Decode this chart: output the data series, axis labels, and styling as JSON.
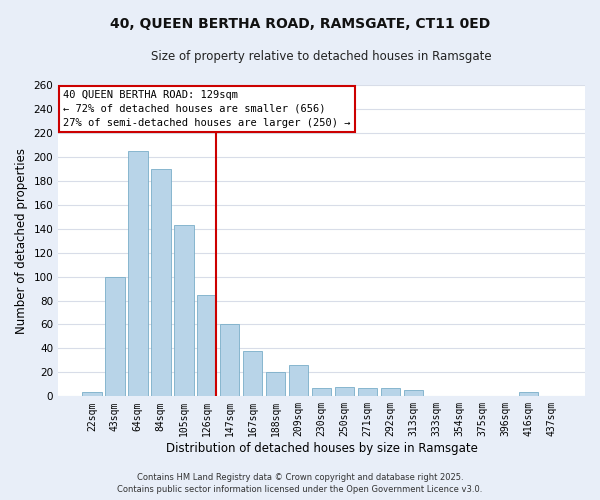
{
  "title": "40, QUEEN BERTHA ROAD, RAMSGATE, CT11 0ED",
  "subtitle": "Size of property relative to detached houses in Ramsgate",
  "xlabel": "Distribution of detached houses by size in Ramsgate",
  "ylabel": "Number of detached properties",
  "bar_labels": [
    "22sqm",
    "43sqm",
    "64sqm",
    "84sqm",
    "105sqm",
    "126sqm",
    "147sqm",
    "167sqm",
    "188sqm",
    "209sqm",
    "230sqm",
    "250sqm",
    "271sqm",
    "292sqm",
    "313sqm",
    "333sqm",
    "354sqm",
    "375sqm",
    "396sqm",
    "416sqm",
    "437sqm"
  ],
  "bar_values": [
    4,
    100,
    205,
    190,
    143,
    85,
    60,
    38,
    20,
    26,
    7,
    8,
    7,
    7,
    5,
    0,
    0,
    0,
    0,
    4,
    0
  ],
  "bar_color": "#b8d4e8",
  "bar_edge_color": "#7aaec8",
  "vline_color": "#cc0000",
  "vline_position": 5.42,
  "ylim": [
    0,
    260
  ],
  "yticks": [
    0,
    20,
    40,
    60,
    80,
    100,
    120,
    140,
    160,
    180,
    200,
    220,
    240,
    260
  ],
  "annotation_title": "40 QUEEN BERTHA ROAD: 129sqm",
  "annotation_line1": "← 72% of detached houses are smaller (656)",
  "annotation_line2": "27% of semi-detached houses are larger (250) →",
  "footer_line1": "Contains HM Land Registry data © Crown copyright and database right 2025.",
  "footer_line2": "Contains public sector information licensed under the Open Government Licence v3.0.",
  "fig_bg_color": "#e8eef8",
  "plot_bg_color": "#ffffff",
  "grid_color": "#d8dde8"
}
